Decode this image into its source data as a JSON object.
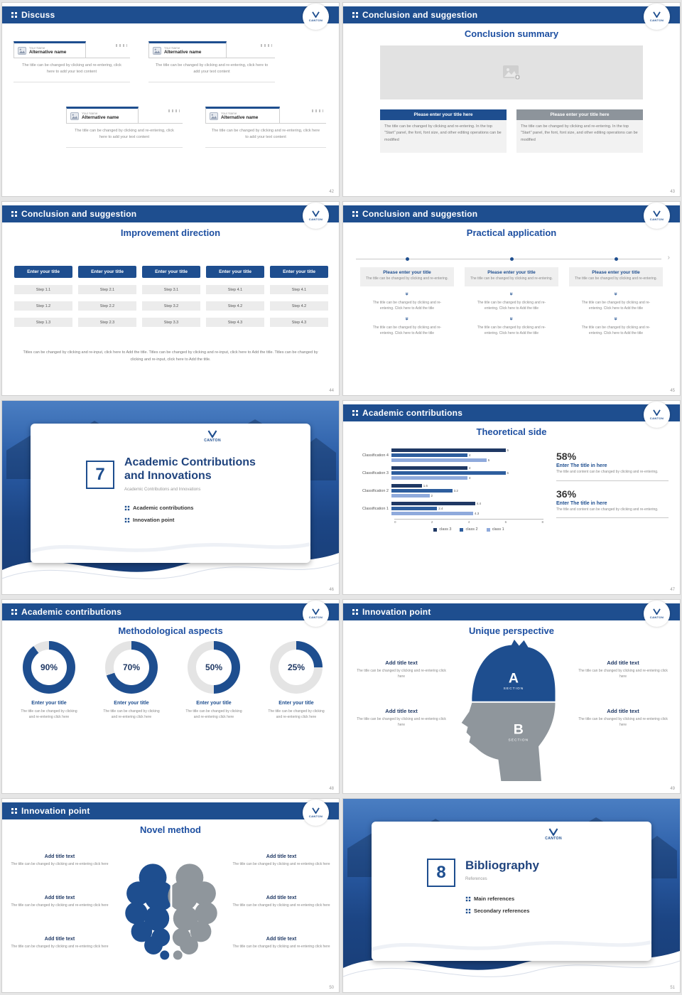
{
  "palette": {
    "navy": "#1e4e8f",
    "title_blue": "#1d4fa1",
    "dark_navy": "#1f3864",
    "mid_blue": "#2e5e9e",
    "light_blue": "#8faadc",
    "button_gray": "#8d949b",
    "track_gray": "#e4e4e4"
  },
  "logo": {
    "text": "CANTON"
  },
  "slides": {
    "s42": {
      "header": "Discuss",
      "page": "42",
      "cards": [
        {
          "name": "Your Name",
          "alt": "Alternative name",
          "body": "The title can be changed by clicking and re-entering, click here to add your text content"
        },
        {
          "name": "Your Name",
          "alt": "Alternative name",
          "body": "The title can be changed by clicking and re-entering, click here to add your text content"
        },
        {
          "name": "Your Name",
          "alt": "Alternative name",
          "body": "The title can be changed by clicking and re-entering, click here to add your text content"
        },
        {
          "name": "Your Name",
          "alt": "Alternative name",
          "body": "The title can be changed by clicking and re-entering, click here to add your text content"
        }
      ]
    },
    "s43": {
      "header": "Conclusion and suggestion",
      "page": "43",
      "title": "Conclusion summary",
      "panels": [
        {
          "button": "Please enter your title here",
          "body": "The title can be changed by clicking and re-entering. In the top \"Start\" panel, the font, font size, and other editing operations can be modified"
        },
        {
          "button": "Please enter your title here",
          "body": "The title can be changed by clicking and re-entering. In the top \"Start\" panel, the font, font size, and other editing operations can be modified"
        }
      ]
    },
    "s44": {
      "header": "Conclusion and suggestion",
      "page": "44",
      "title": "Improvement direction",
      "columns": [
        {
          "button": "Enter your title",
          "steps": [
            "Step 1.1",
            "Step 1.2",
            "Step 1.3"
          ]
        },
        {
          "button": "Enter your title",
          "steps": [
            "Step 2.1",
            "Step 2.2",
            "Step 2.3"
          ]
        },
        {
          "button": "Enter your title",
          "steps": [
            "Step 3.1",
            "Step 3.2",
            "Step 3.3"
          ]
        },
        {
          "button": "Enter your title",
          "steps": [
            "Step 4.1",
            "Step 4.2",
            "Step 4.3"
          ]
        },
        {
          "button": "Enter your title",
          "steps": [
            "Step 4.1",
            "Step 4.2",
            "Step 4.3"
          ]
        }
      ],
      "footer": "Titles can be changed by clicking and re-input, click here to Add the title. Titles can be changed by clicking and re-input, click here to Add the title. Titles can be changed by clicking and re-input, click here to Add the title."
    },
    "s45": {
      "header": "Conclusion and suggestion",
      "page": "45",
      "title": "Practical application",
      "columns": [
        {
          "box_title": "Please enter your title",
          "box_body": "The title can be changed by clicking and re-entering.",
          "step1": "The title can be changed by clicking and re-entering. Click here to Add the title",
          "step2": "The title can be changed by clicking and re-entering. Click here to Add the title"
        },
        {
          "box_title": "Please enter your title",
          "box_body": "The title can be changed by clicking and re-entering.",
          "step1": "The title can be changed by clicking and re-entering. Click here to Add the title",
          "step2": "The title can be changed by clicking and re-entering. Click here to Add the title"
        },
        {
          "box_title": "Please enter your title",
          "box_body": "The title can be changed by clicking and re-entering.",
          "step1": "The title can be changed by clicking and re-entering. Click here to Add the title",
          "step2": "The title can be changed by clicking and re-entering. Click here to Add the title"
        }
      ]
    },
    "s46": {
      "page": "46",
      "number": "7",
      "title_line1": "Academic Contributions",
      "title_line2": "and Innovations",
      "subtitle": "Academic Contributions and Innovations",
      "bullets": [
        "Academic contributions",
        "Innovation point"
      ]
    },
    "s47": {
      "header": "Academic contributions",
      "page": "47",
      "title": "Theoretical side",
      "stats": [
        {
          "value": "58%",
          "title": "Enter The title in here",
          "body": "The title and content can be changed by clicking and re-entering."
        },
        {
          "value": "36%",
          "title": "Enter The title in here",
          "body": "The title and content can be changed by clicking and re-entering."
        }
      ]
    },
    "s48": {
      "header": "Academic contributions",
      "page": "48",
      "title": "Methodological aspects",
      "donuts": [
        {
          "pct": 90,
          "label": "90%",
          "title": "Enter your title",
          "body": "The title can be changed by clicking and re-entering click here"
        },
        {
          "pct": 70,
          "label": "70%",
          "title": "Enter your title",
          "body": "The title can be changed by clicking and re-entering click here"
        },
        {
          "pct": 50,
          "label": "50%",
          "title": "Enter your title",
          "body": "The title can be changed by clicking and re-entering click here"
        },
        {
          "pct": 25,
          "label": "25%",
          "title": "Enter your title",
          "body": "The title can be changed by clicking and re-entering click here"
        }
      ]
    },
    "s49": {
      "header": "Innovation point",
      "page": "49",
      "title": "Unique perspective",
      "sections": [
        {
          "letter": "A",
          "caption": "SECTION"
        },
        {
          "letter": "B",
          "caption": "SECTION"
        }
      ],
      "left": [
        {
          "title": "Add title text",
          "body": "The title can be changed by clicking and re-entering click here"
        },
        {
          "title": "Add title text",
          "body": "The title can be changed by clicking and re-entering click here"
        }
      ],
      "right": [
        {
          "title": "Add title text",
          "body": "The title can be changed by clicking and re-entering click here"
        },
        {
          "title": "Add title text",
          "body": "The title can be changed by clicking and re-entering click here"
        }
      ]
    },
    "s50": {
      "header": "Innovation point",
      "page": "50",
      "title": "Novel method",
      "left": [
        {
          "title": "Add title text",
          "body": "The title can be changed by clicking and re-entering click here"
        },
        {
          "title": "Add title text",
          "body": "The title can be changed by clicking and re-entering click here"
        },
        {
          "title": "Add title text",
          "body": "The title can be changed by clicking and re-entering click here"
        }
      ],
      "right": [
        {
          "title": "Add title text",
          "body": "The title can be changed by clicking and re-entering click here"
        },
        {
          "title": "Add title text",
          "body": "The title can be changed by clicking and re-entering click here"
        },
        {
          "title": "Add title text",
          "body": "The title can be changed by clicking and re-entering click here"
        }
      ]
    },
    "s51": {
      "page": "51",
      "number": "8",
      "title": "Bibliography",
      "subtitle": "References",
      "bullets": [
        "Main references",
        "Secondary references"
      ]
    }
  },
  "chart_data": [
    {
      "slide": "47",
      "type": "bar",
      "orientation": "horizontal",
      "title": "Theoretical side",
      "categories": [
        "Classification 4",
        "Classification 3",
        "Classification 2",
        "Classification 1"
      ],
      "series": [
        {
          "name": "class 3",
          "color": "#1f3864",
          "values": [
            6,
            4,
            1.6,
            4.4
          ]
        },
        {
          "name": "class 2",
          "color": "#2e5e9e",
          "values": [
            4,
            6,
            3.2,
            2.4
          ]
        },
        {
          "name": "class 1",
          "color": "#8faadc",
          "values": [
            5,
            4,
            2,
            4.3
          ]
        }
      ],
      "xlim": [
        0,
        8
      ],
      "x_ticks": [
        "0",
        "2",
        "4",
        "6",
        "8"
      ],
      "legend": [
        "class 3",
        "class 2",
        "class 1"
      ],
      "legend_position": "bottom",
      "grid": false
    },
    {
      "slide": "48",
      "type": "pie",
      "style": "donut",
      "labels": [
        "90%",
        "70%",
        "50%",
        "25%"
      ],
      "values": [
        90,
        70,
        50,
        25
      ],
      "title": "Methodological aspects"
    }
  ]
}
